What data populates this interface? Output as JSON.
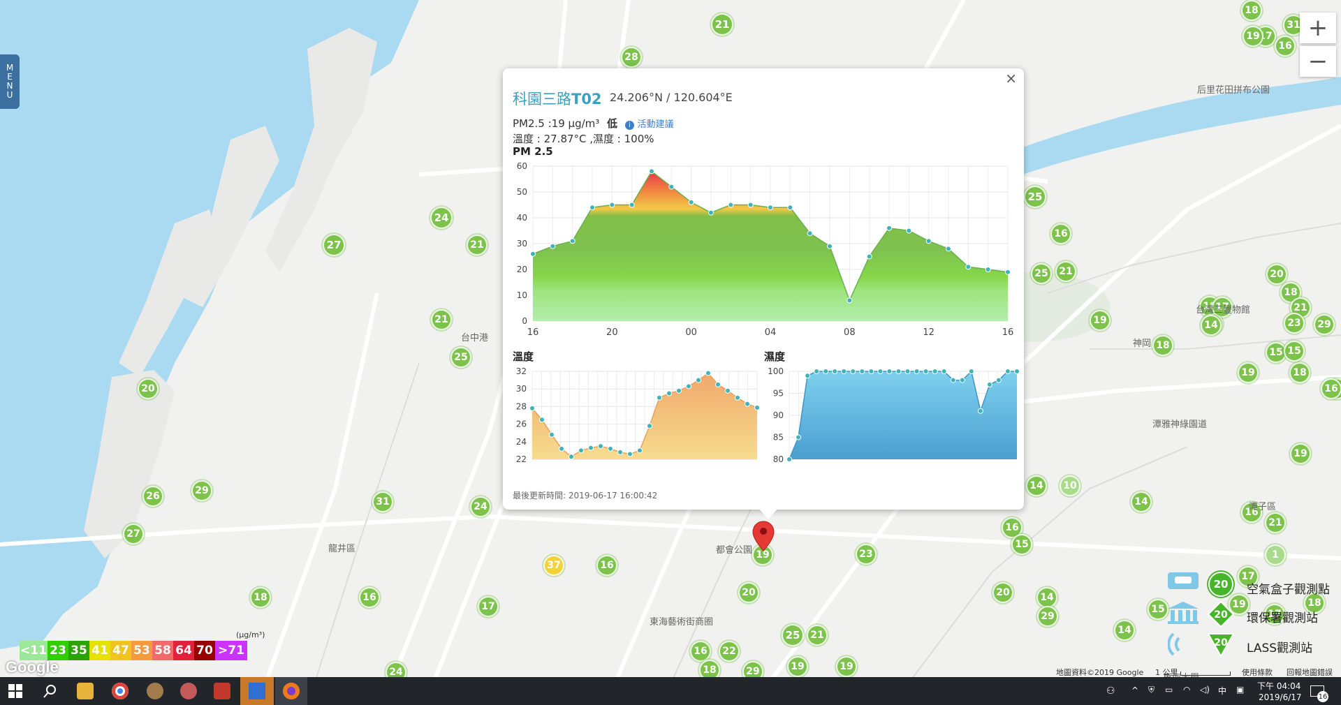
{
  "menu_label": [
    "M",
    "E",
    "N",
    "U"
  ],
  "zoom": {
    "in_label": "+",
    "out_label": "−"
  },
  "markers": [
    {
      "v": "21",
      "c": "#7cc24b"
    },
    {
      "v": "28",
      "c": "#7cc24b"
    },
    {
      "v": "24",
      "c": "#7cc24b"
    },
    {
      "v": "27",
      "c": "#7cc24b"
    },
    {
      "v": "21",
      "c": "#7cc24b"
    },
    {
      "v": "21",
      "c": "#7cc24b"
    },
    {
      "v": "25",
      "c": "#7cc24b"
    },
    {
      "v": "20",
      "c": "#7cc24b"
    },
    {
      "v": "26",
      "c": "#7cc24b"
    },
    {
      "v": "29",
      "c": "#7cc24b"
    },
    {
      "v": "27",
      "c": "#7cc24b"
    },
    {
      "v": "31",
      "c": "#7cc24b"
    },
    {
      "v": "24",
      "c": "#7cc24b"
    },
    {
      "v": "37",
      "c": "#f2d13a"
    },
    {
      "v": "16",
      "c": "#7cc24b"
    },
    {
      "v": "18",
      "c": "#7cc24b"
    },
    {
      "v": "16",
      "c": "#7cc24b"
    },
    {
      "v": "17",
      "c": "#7cc24b"
    },
    {
      "v": "24",
      "c": "#7cc24b"
    },
    {
      "v": "20",
      "c": "#7cc24b"
    },
    {
      "v": "23",
      "c": "#7cc24b"
    },
    {
      "v": "19",
      "c": "#7cc24b"
    },
    {
      "v": "25",
      "c": "#7cc24b"
    },
    {
      "v": "21",
      "c": "#7cc24b"
    },
    {
      "v": "16",
      "c": "#7cc24b"
    },
    {
      "v": "22",
      "c": "#7cc24b"
    },
    {
      "v": "18",
      "c": "#7cc24b"
    },
    {
      "v": "29",
      "c": "#7cc24b"
    },
    {
      "v": "19",
      "c": "#7cc24b"
    },
    {
      "v": "19",
      "c": "#7cc24b"
    },
    {
      "v": "18",
      "c": "#7cc24b"
    },
    {
      "v": "17",
      "c": "#7cc24b"
    },
    {
      "v": "19",
      "c": "#7cc24b"
    },
    {
      "v": "16",
      "c": "#7cc24b"
    },
    {
      "v": "25",
      "c": "#7cc24b"
    },
    {
      "v": "16",
      "c": "#7cc24b"
    },
    {
      "v": "25",
      "c": "#7cc24b"
    },
    {
      "v": "21",
      "c": "#7cc24b"
    },
    {
      "v": "19",
      "c": "#7cc24b"
    },
    {
      "v": "18",
      "c": "#7cc24b"
    },
    {
      "v": "14",
      "c": "#7cc24b"
    },
    {
      "v": "10",
      "c": "#a8dc8b"
    },
    {
      "v": "14",
      "c": "#7cc24b"
    },
    {
      "v": "16",
      "c": "#7cc24b"
    },
    {
      "v": "15",
      "c": "#7cc24b"
    },
    {
      "v": "14",
      "c": "#7cc24b"
    },
    {
      "v": "29",
      "c": "#7cc24b"
    },
    {
      "v": "14",
      "c": "#7cc24b"
    },
    {
      "v": "15",
      "c": "#7cc24b"
    },
    {
      "v": "18",
      "c": "#7cc24b"
    },
    {
      "v": "20",
      "c": "#7cc24b"
    },
    {
      "v": "18",
      "c": "#7cc24b"
    },
    {
      "v": "17",
      "c": "#7cc24b"
    },
    {
      "v": "21",
      "c": "#7cc24b"
    },
    {
      "v": "14",
      "c": "#7cc24b"
    },
    {
      "v": "23",
      "c": "#7cc24b"
    },
    {
      "v": "29",
      "c": "#7cc24b"
    },
    {
      "v": "18",
      "c": "#7cc24b"
    },
    {
      "v": "19",
      "c": "#7cc24b"
    },
    {
      "v": "15",
      "c": "#7cc24b"
    },
    {
      "v": "15",
      "c": "#7cc24b"
    },
    {
      "v": "18",
      "c": "#7cc24b"
    },
    {
      "v": "19",
      "c": "#7cc24b"
    },
    {
      "v": "14",
      "c": "#7cc24b"
    },
    {
      "v": "16",
      "c": "#7cc24b"
    },
    {
      "v": "21",
      "c": "#7cc24b"
    },
    {
      "v": "1",
      "c": "#a8dc8b"
    },
    {
      "v": "17",
      "c": "#7cc24b"
    },
    {
      "v": "18",
      "c": "#7cc24b"
    },
    {
      "v": "17",
      "c": "#7cc24b"
    },
    {
      "v": "19",
      "c": "#7cc24b"
    },
    {
      "v": "16",
      "c": "#7cc24b"
    },
    {
      "v": "31",
      "c": "#7cc24b"
    },
    {
      "v": "20",
      "c": "#7cc24b"
    }
  ],
  "map_labels": [
    "台中港",
    "龍井區",
    "東海藝術街商圈",
    "都會公園",
    "神岡",
    "潭雅神綠園道",
    "台灣三豐物館",
    "后里花田拼布公園",
    "潭子區",
    "東海大學"
  ],
  "popup": {
    "close_label": "×",
    "title_plain": "科園三路",
    "title_bold": "T02",
    "coords": "24.206°N / 120.604°E",
    "pm_line": "PM2.5 :19 μg/m³",
    "pm_level": "低",
    "advice_link": "活動建議",
    "temp_humid_line": "溫度 : 27.87°C ,濕度 : 100%",
    "updated": "最後更新時間: 2019-06-17 16:00:42"
  },
  "chart_data": [
    {
      "type": "area",
      "title": "PM 2.5",
      "x_tick_labels": [
        "16",
        "20",
        "00",
        "04",
        "08",
        "12",
        "16"
      ],
      "y_ticks": [
        0,
        10,
        20,
        30,
        40,
        50,
        60
      ],
      "ylim": [
        0,
        60
      ],
      "grid": true,
      "values": [
        26,
        29,
        31,
        44,
        45,
        45,
        58,
        52,
        46,
        42,
        45,
        45,
        44,
        44,
        34,
        29,
        8,
        25,
        36,
        35,
        31,
        28,
        21,
        20,
        19
      ]
    },
    {
      "type": "area",
      "title": "溫度",
      "y_ticks": [
        22,
        24,
        26,
        28,
        30,
        32
      ],
      "ylim": [
        22,
        32
      ],
      "grid": true,
      "values": [
        27.8,
        26.5,
        24.8,
        23.2,
        22.3,
        23.0,
        23.3,
        23.5,
        23.2,
        22.8,
        22.6,
        23.0,
        25.8,
        29.0,
        29.5,
        29.8,
        30.3,
        31.0,
        31.8,
        30.5,
        29.8,
        29.0,
        28.3,
        27.87
      ]
    },
    {
      "type": "area",
      "title": "濕度",
      "y_ticks": [
        80,
        85,
        90,
        95,
        100
      ],
      "ylim": [
        80,
        100
      ],
      "grid": true,
      "values": [
        80,
        85,
        99,
        100,
        100,
        100,
        100,
        100,
        100,
        100,
        100,
        100,
        100,
        100,
        100,
        100,
        100,
        100,
        98,
        98,
        100,
        91,
        97,
        98,
        100,
        100
      ]
    }
  ],
  "aq_legend": {
    "unit": "(μg/m³)",
    "items": [
      {
        "label": "<11",
        "c": "#9ce89a"
      },
      {
        "label": "23",
        "c": "#31cf00"
      },
      {
        "label": "35",
        "c": "#2ba304"
      },
      {
        "label": "41",
        "c": "#e6e100"
      },
      {
        "label": "47",
        "c": "#f0c320"
      },
      {
        "label": "53",
        "c": "#f29a3d"
      },
      {
        "label": "58",
        "c": "#f06a6a"
      },
      {
        "label": "64",
        "c": "#e0233b"
      },
      {
        "label": "70",
        "c": "#990000"
      },
      {
        "label": ">71",
        "c": "#cc33ff"
      }
    ]
  },
  "station_legend": [
    {
      "label": "空氣盒子觀測點",
      "num": "20"
    },
    {
      "label": "環保署觀測站",
      "num": "20"
    },
    {
      "label": "LASS觀測站",
      "num": "20"
    }
  ],
  "google_logo": "Google",
  "attribution": [
    "地圖資料©2019 Google",
    "1 公里",
    "使用條款",
    "回報地圖錯誤"
  ],
  "taskbar": {
    "time": "下午 04:04",
    "date": "2019/6/17",
    "ime": "中",
    "notif_count": "16"
  }
}
